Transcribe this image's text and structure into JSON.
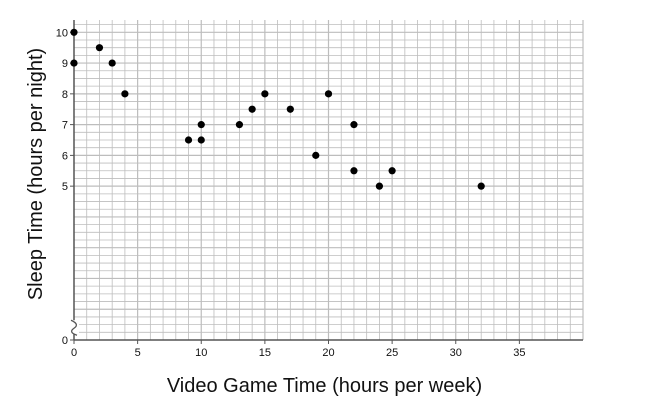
{
  "chart_data": {
    "type": "scatter",
    "title": "",
    "xlabel": "Video Game Time (hours per week)",
    "ylabel": "Sleep Time (hours per night)",
    "xlim": [
      0,
      40
    ],
    "ylim": [
      0,
      10.4
    ],
    "x_ticks": [
      0,
      5,
      10,
      15,
      20,
      25,
      30,
      35
    ],
    "x_tick_labels": [
      "0",
      "5",
      "10",
      "15",
      "20",
      "25",
      "30",
      "35"
    ],
    "y_ticks": [
      0,
      5,
      6,
      7,
      8,
      9,
      10
    ],
    "y_tick_labels": [
      "0",
      "5",
      "6",
      "7",
      "8",
      "9",
      "10"
    ],
    "y_axis_break": true,
    "grid": true,
    "x_minor_step": 1,
    "y_minor_step": 0.25,
    "point_color": "#000000",
    "grid_color": "#bdbdbd",
    "axis_color": "#555555",
    "series": [
      {
        "x": [
          0,
          0,
          2,
          3,
          4,
          9,
          10,
          10,
          13,
          14,
          15,
          17,
          19,
          20,
          22,
          22,
          24,
          25,
          32
        ],
        "y": [
          10,
          9,
          9.5,
          9,
          8,
          6.5,
          7,
          6.5,
          7,
          7.5,
          8,
          7.5,
          6,
          8,
          7,
          5.5,
          5,
          5.5,
          5
        ]
      }
    ]
  }
}
